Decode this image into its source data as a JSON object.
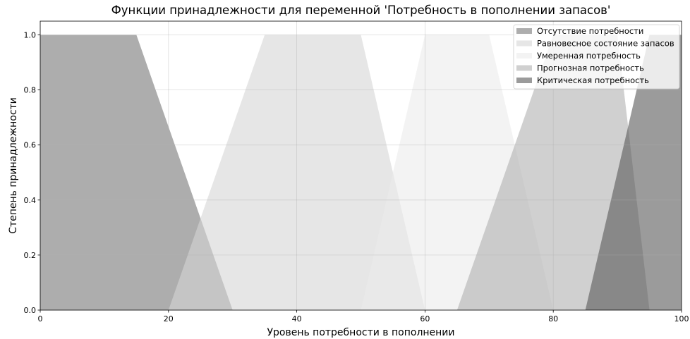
{
  "chart_data": {
    "type": "area",
    "title": "Функции принадлежности для переменной 'Потребность в пополнении запасов'",
    "xlabel": "Уровень потребности в пополнении",
    "ylabel": "Степень принадлежности",
    "xlim": [
      0,
      100
    ],
    "ylim": [
      0,
      1.05
    ],
    "xticks": [
      "0",
      "20",
      "40",
      "60",
      "80",
      "100"
    ],
    "yticks": [
      "0.0",
      "0.2",
      "0.4",
      "0.6",
      "0.8",
      "1.0"
    ],
    "grid": true,
    "legend_position": "top-right",
    "series": [
      {
        "name": "Отсутствие потребности",
        "color": "#777777",
        "x": [
          0,
          15,
          30
        ],
        "y": [
          1,
          1,
          0
        ]
      },
      {
        "name": "Равновесное состояние запасов",
        "color": "#d5d5d5",
        "x": [
          20,
          35,
          50,
          60
        ],
        "y": [
          0,
          1,
          1,
          0
        ]
      },
      {
        "name": "Умеренная потребность",
        "color": "#ebebeb",
        "x": [
          50,
          60,
          70,
          80
        ],
        "y": [
          0,
          1,
          1,
          0
        ]
      },
      {
        "name": "Прогнозная потребность",
        "color": "#b1b1b1",
        "x": [
          65,
          80,
          90,
          95
        ],
        "y": [
          0,
          1,
          1,
          0
        ]
      },
      {
        "name": "Критическая потребность",
        "color": "#585858",
        "x": [
          85,
          95,
          100
        ],
        "y": [
          0,
          1,
          1
        ]
      }
    ]
  }
}
